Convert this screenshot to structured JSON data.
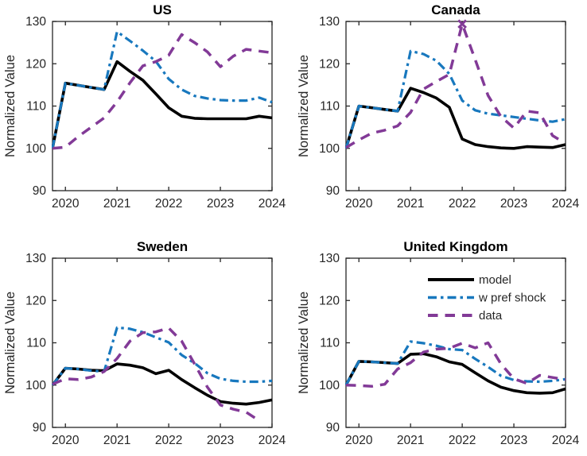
{
  "figure": {
    "background": "#ffffff",
    "axis_color": "#262626",
    "text_color": "#262626",
    "title_color": "#000000",
    "ylabel": "Normalized Value",
    "legend": {
      "position": "upper-right-of-uk-subplot",
      "entries": [
        {
          "label": "model",
          "style": "model"
        },
        {
          "label": "w pref shock",
          "style": "pref"
        },
        {
          "label": "data",
          "style": "data"
        }
      ]
    }
  },
  "series_styles": {
    "model": {
      "color": "#000000",
      "dash": "solid",
      "width": 3.6
    },
    "pref": {
      "color": "#1878BE",
      "dash": "dashdot",
      "width": 3.2
    },
    "data": {
      "color": "#823A97",
      "dash": "dashed",
      "width": 3.5
    }
  },
  "chart_data": [
    {
      "type": "line",
      "title": "US",
      "ylabel": "Normalized Value",
      "xlim": [
        2019.75,
        2024
      ],
      "ylim": [
        90,
        130
      ],
      "xticks": [
        2020,
        2021,
        2022,
        2023,
        2024
      ],
      "yticks": [
        90,
        100,
        110,
        120,
        130
      ],
      "grid": false,
      "legend_visible": false,
      "series": [
        {
          "name": "model",
          "style": "model",
          "x": [
            2019.75,
            2020,
            2020.25,
            2020.5,
            2020.75,
            2021,
            2021.25,
            2021.5,
            2021.75,
            2022,
            2022.25,
            2022.5,
            2022.75,
            2023,
            2023.25,
            2023.5,
            2023.75,
            2024
          ],
          "y": [
            100,
            115.4,
            114.9,
            114.4,
            113.9,
            120.5,
            118.2,
            116.1,
            112.9,
            109.6,
            107.6,
            107.1,
            107,
            107,
            107,
            107,
            107.6,
            107.2
          ]
        },
        {
          "name": "w pref shock",
          "style": "pref",
          "x": [
            2019.75,
            2020,
            2020.25,
            2020.5,
            2020.75,
            2021,
            2021.25,
            2021.5,
            2021.75,
            2022,
            2022.25,
            2022.5,
            2022.75,
            2023,
            2023.25,
            2023.5,
            2023.75,
            2024
          ],
          "y": [
            100,
            115.4,
            114.9,
            114.4,
            113.9,
            127.6,
            125.4,
            123.1,
            120.6,
            116.4,
            113.9,
            112.4,
            111.8,
            111.4,
            111.3,
            111.3,
            112,
            110.9
          ]
        },
        {
          "name": "data",
          "style": "data",
          "x": [
            2019.75,
            2020,
            2020.25,
            2020.5,
            2020.75,
            2021,
            2021.25,
            2021.5,
            2021.75,
            2022,
            2022.25,
            2022.5,
            2022.75,
            2023,
            2023.25,
            2023.5,
            2023.75,
            2024
          ],
          "y": [
            100,
            100.3,
            102.8,
            105,
            107.2,
            111,
            115.5,
            119.5,
            120.5,
            122,
            126.9,
            125,
            122.8,
            119.3,
            121.8,
            123.4,
            123,
            122.6
          ]
        }
      ]
    },
    {
      "type": "line",
      "title": "Canada",
      "ylabel": "Normalized Value",
      "xlim": [
        2019.75,
        2024
      ],
      "ylim": [
        90,
        130
      ],
      "xticks": [
        2020,
        2021,
        2022,
        2023,
        2024
      ],
      "yticks": [
        90,
        100,
        110,
        120,
        130
      ],
      "grid": false,
      "legend_visible": false,
      "series": [
        {
          "name": "model",
          "style": "model",
          "x": [
            2019.75,
            2020,
            2020.25,
            2020.5,
            2020.75,
            2021,
            2021.25,
            2021.5,
            2021.75,
            2022,
            2022.25,
            2022.5,
            2022.75,
            2023,
            2023.25,
            2023.5,
            2023.75,
            2024
          ],
          "y": [
            100,
            110,
            109.6,
            109.2,
            108.8,
            114.2,
            113.2,
            111.9,
            109.7,
            102.2,
            100.9,
            100.4,
            100.1,
            100,
            100.4,
            100.3,
            100.2,
            100.9
          ]
        },
        {
          "name": "w pref shock",
          "style": "pref",
          "x": [
            2019.75,
            2020,
            2020.25,
            2020.5,
            2020.75,
            2021,
            2021.25,
            2021.5,
            2021.75,
            2022,
            2022.25,
            2022.5,
            2022.75,
            2023,
            2023.25,
            2023.5,
            2023.75,
            2024
          ],
          "y": [
            100,
            110,
            109.6,
            109.2,
            108.8,
            123,
            122.3,
            120.7,
            117.6,
            111.3,
            109,
            108.2,
            107.8,
            107.4,
            107,
            106.6,
            106.3,
            106.9
          ]
        },
        {
          "name": "data",
          "style": "data",
          "x": [
            2019.75,
            2020,
            2020.25,
            2020.5,
            2020.75,
            2021,
            2021.25,
            2021.5,
            2021.75,
            2022,
            2022.25,
            2022.5,
            2022.75,
            2023,
            2023.25,
            2023.5,
            2023.75,
            2023.9
          ],
          "y": [
            100.2,
            102,
            103.6,
            104.3,
            105.3,
            108.5,
            114,
            115.8,
            117.5,
            129.4,
            121,
            112.5,
            107.5,
            104.8,
            108.8,
            108.4,
            103,
            101.9
          ],
          "markers": [
            {
              "x": 2022,
              "y": 129.4,
              "type": "x"
            }
          ]
        }
      ]
    },
    {
      "type": "line",
      "title": "Sweden",
      "ylabel": "Normalized Value",
      "xlim": [
        2019.75,
        2024
      ],
      "ylim": [
        90,
        130
      ],
      "xticks": [
        2020,
        2021,
        2022,
        2023,
        2024
      ],
      "yticks": [
        90,
        100,
        110,
        120,
        130
      ],
      "grid": false,
      "legend_visible": false,
      "series": [
        {
          "name": "model",
          "style": "model",
          "x": [
            2019.75,
            2020,
            2020.25,
            2020.5,
            2020.75,
            2021,
            2021.25,
            2021.5,
            2021.75,
            2022,
            2022.25,
            2022.5,
            2022.75,
            2023,
            2023.25,
            2023.5,
            2023.75,
            2024
          ],
          "y": [
            100,
            104,
            103.8,
            103.5,
            103.4,
            105,
            104.7,
            104.1,
            102.7,
            103.5,
            101.3,
            99.4,
            97.6,
            96.1,
            95.7,
            95.5,
            95.9,
            96.5
          ]
        },
        {
          "name": "w pref shock",
          "style": "pref",
          "x": [
            2019.75,
            2020,
            2020.25,
            2020.5,
            2020.75,
            2021,
            2021.25,
            2021.5,
            2021.75,
            2022,
            2022.25,
            2022.5,
            2022.75,
            2023,
            2023.25,
            2023.5,
            2023.75,
            2024
          ],
          "y": [
            100,
            104,
            103.8,
            103.4,
            103.2,
            113.6,
            113.3,
            112.5,
            111.3,
            110.1,
            107.1,
            105.2,
            102.8,
            101.5,
            101,
            100.8,
            100.8,
            101
          ]
        },
        {
          "name": "data",
          "style": "data",
          "x": [
            2019.75,
            2020,
            2020.25,
            2020.5,
            2020.75,
            2021,
            2021.25,
            2021.5,
            2021.75,
            2022,
            2022.25,
            2022.5,
            2022.75,
            2023,
            2023.25,
            2023.5,
            2023.75
          ],
          "y": [
            100.2,
            101.5,
            101.3,
            101.9,
            103.2,
            106.3,
            110.4,
            112.4,
            112.6,
            113.5,
            110.4,
            105,
            99.5,
            95.3,
            94.3,
            93.6,
            91.6
          ]
        }
      ]
    },
    {
      "type": "line",
      "title": "United Kingdom",
      "ylabel": "Normalized Value",
      "xlim": [
        2019.75,
        2024
      ],
      "ylim": [
        90,
        130
      ],
      "xticks": [
        2020,
        2021,
        2022,
        2023,
        2024
      ],
      "yticks": [
        90,
        100,
        110,
        120,
        130
      ],
      "grid": false,
      "legend_visible": true,
      "series": [
        {
          "name": "model",
          "style": "model",
          "x": [
            2019.75,
            2020,
            2020.25,
            2020.5,
            2020.75,
            2021,
            2021.25,
            2021.5,
            2021.75,
            2022,
            2022.25,
            2022.5,
            2022.75,
            2023,
            2023.25,
            2023.5,
            2023.75,
            2024
          ],
          "y": [
            100,
            105.6,
            105.5,
            105.3,
            105.1,
            107.3,
            107.4,
            106.7,
            105.5,
            104.9,
            102.9,
            101,
            99.5,
            98.7,
            98.2,
            98.1,
            98.2,
            99.1
          ]
        },
        {
          "name": "w pref shock",
          "style": "pref",
          "x": [
            2019.75,
            2020,
            2020.25,
            2020.5,
            2020.75,
            2021,
            2021.25,
            2021.5,
            2021.75,
            2022,
            2022.25,
            2022.5,
            2022.75,
            2023,
            2023.25,
            2023.5,
            2023.75,
            2024
          ],
          "y": [
            100,
            105.6,
            105.5,
            105.3,
            105.1,
            110.3,
            109.9,
            109.3,
            108.5,
            108.3,
            106.2,
            104.3,
            102.2,
            101.2,
            100.9,
            100.8,
            101,
            101.4
          ]
        },
        {
          "name": "data",
          "style": "data",
          "x": [
            2019.75,
            2020,
            2020.25,
            2020.5,
            2020.75,
            2021,
            2021.25,
            2021.5,
            2021.75,
            2022,
            2022.25,
            2022.5,
            2022.75,
            2023,
            2023.25,
            2023.5,
            2023.75,
            2024
          ],
          "y": [
            100,
            99.9,
            99.7,
            100.2,
            103.8,
            105.3,
            107.8,
            108.5,
            108.7,
            109.9,
            108.8,
            110,
            105,
            101.5,
            100.4,
            102.3,
            101.8,
            101.3
          ]
        }
      ]
    }
  ]
}
